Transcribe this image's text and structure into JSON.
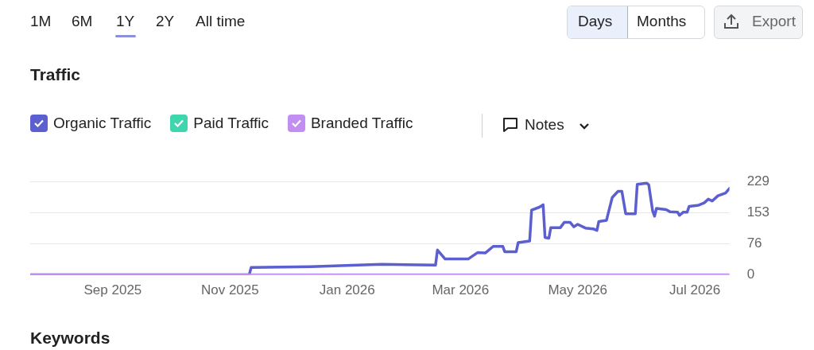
{
  "chart_data": {
    "type": "line",
    "title": "Traffic",
    "xlim": [
      "2025-07-20",
      "2026-07-19"
    ],
    "xticks": [
      {
        "value": "2025-09-01",
        "label": "Sep 2025"
      },
      {
        "value": "2025-11-01",
        "label": "Nov 2025"
      },
      {
        "value": "2026-01-01",
        "label": "Jan 2026"
      },
      {
        "value": "2026-03-01",
        "label": "Mar 2026"
      },
      {
        "value": "2026-05-01",
        "label": "May 2026"
      },
      {
        "value": "2026-07-01",
        "label": "Jul 2026"
      }
    ],
    "ylim": [
      0,
      229
    ],
    "yticks": [
      0,
      76,
      153,
      229
    ],
    "grid": "y",
    "legend": "top left",
    "marker": "none",
    "series": [
      {
        "name": "Organic Traffic",
        "color": "#5c5fcf",
        "x": [
          "2025-07-20",
          "2025-11-11",
          "2025-11-12",
          "2025-12-13",
          "2026-01-19",
          "2026-02-16",
          "2026-02-17",
          "2026-02-21",
          "2026-03-05",
          "2026-03-10",
          "2026-03-14",
          "2026-03-18",
          "2026-03-23",
          "2026-03-24",
          "2026-03-30",
          "2026-03-31",
          "2026-04-06",
          "2026-04-07",
          "2026-04-11",
          "2026-04-13",
          "2026-04-14",
          "2026-04-16",
          "2026-04-17",
          "2026-04-22",
          "2026-04-24",
          "2026-04-27",
          "2026-04-29",
          "2026-05-01",
          "2026-05-05",
          "2026-05-09",
          "2026-05-11",
          "2026-05-12",
          "2026-05-16",
          "2026-05-17",
          "2026-05-19",
          "2026-05-22",
          "2026-05-24",
          "2026-05-26",
          "2026-05-31",
          "2026-06-01",
          "2026-06-06",
          "2026-06-07",
          "2026-06-09",
          "2026-06-10",
          "2026-06-11",
          "2026-06-16",
          "2026-06-18",
          "2026-06-22",
          "2026-06-23",
          "2026-06-25",
          "2026-06-27",
          "2026-06-28",
          "2026-07-03",
          "2026-07-06",
          "2026-07-08",
          "2026-07-10",
          "2026-07-13",
          "2026-07-17",
          "2026-07-19"
        ],
        "values": [
          0,
          0,
          18,
          20,
          26,
          24,
          61,
          39,
          39,
          55,
          54,
          70,
          70,
          57,
          57,
          79,
          83,
          159,
          166,
          172,
          92,
          90,
          116,
          116,
          129,
          129,
          118,
          124,
          115,
          113,
          109,
          131,
          134,
          153,
          190,
          205,
          205,
          150,
          150,
          222,
          225,
          221,
          157,
          144,
          163,
          160,
          155,
          154,
          146,
          154,
          154,
          168,
          171,
          177,
          186,
          181,
          194,
          201,
          212
        ]
      },
      {
        "name": "Paid Traffic",
        "color": "#3fd6ad"
      },
      {
        "name": "Branded Traffic",
        "color": "#c28ef2",
        "x": [
          "2025-07-20",
          "2026-07-19"
        ],
        "values": [
          0,
          0
        ]
      }
    ],
    "annotations": [
      "1M",
      "6M",
      "1Y",
      "2Y",
      "All time",
      "Days",
      "Months",
      "Export",
      "Notes",
      "Keywords"
    ]
  }
}
